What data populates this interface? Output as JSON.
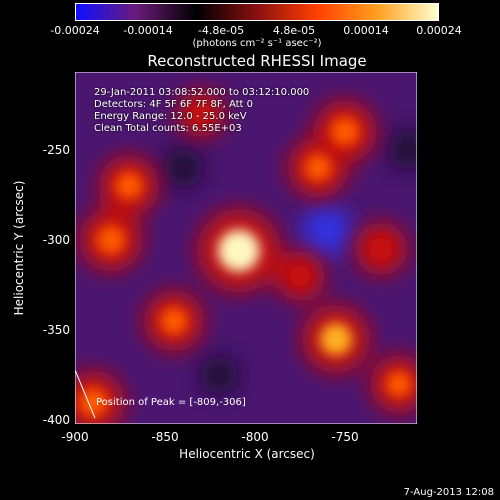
{
  "colorbar": {
    "ticks": [
      "-0.00024",
      "-0.00014",
      "-4.8e-05",
      "4.8e-05",
      "0.00014",
      "0.00024"
    ],
    "unit": "(photons cm⁻² s⁻¹ asec⁻²)",
    "colors": [
      "#1010ff",
      "#6a1a7a",
      "#000000",
      "#8a1010",
      "#ff4000",
      "#ffa020",
      "#ffffd0"
    ]
  },
  "chart_data": {
    "type": "heatmap",
    "title": "Reconstructed RHESSI Image",
    "xlabel": "Heliocentric X (arcsec)",
    "ylabel": "Heliocentric Y (arcsec)",
    "xlim": [
      -900,
      -710
    ],
    "ylim": [
      -402,
      -207
    ],
    "xticks": [
      -900,
      -850,
      -800,
      -750
    ],
    "yticks": [
      -400,
      -350,
      -300,
      -250
    ],
    "annotations": [
      "29-Jan-2011 03:08:52.000 to 03:12:10.000",
      "Detectors: 4F 5F 6F 7F 8F, Att 0",
      "Energy Range: 12.0 - 25.0 keV",
      "Clean    Total counts: 6.55E+03"
    ],
    "peak_label": "Position of Peak = [-809,-306]",
    "peak": [
      -809,
      -306
    ],
    "sources": [
      {
        "x": -809,
        "y": -306,
        "intensity": 1.0
      },
      {
        "x": -870,
        "y": -270,
        "intensity": 0.55
      },
      {
        "x": -880,
        "y": -300,
        "intensity": 0.6
      },
      {
        "x": -845,
        "y": -345,
        "intensity": 0.55
      },
      {
        "x": -890,
        "y": -390,
        "intensity": 0.6
      },
      {
        "x": -765,
        "y": -260,
        "intensity": 0.55
      },
      {
        "x": -750,
        "y": -240,
        "intensity": 0.6
      },
      {
        "x": -755,
        "y": -355,
        "intensity": 0.7
      },
      {
        "x": -775,
        "y": -320,
        "intensity": 0.35
      },
      {
        "x": -730,
        "y": -305,
        "intensity": 0.4
      },
      {
        "x": -720,
        "y": -380,
        "intensity": 0.5
      },
      {
        "x": -830,
        "y": -230,
        "intensity": 0.3
      }
    ],
    "negatives": [
      {
        "x": -760,
        "y": -295,
        "intensity": 0.8
      },
      {
        "x": -840,
        "y": -260,
        "intensity": 0.4
      },
      {
        "x": -715,
        "y": -250,
        "intensity": 0.4
      },
      {
        "x": -820,
        "y": -375,
        "intensity": 0.35
      }
    ]
  },
  "footer": "7-Aug-2013 12:08"
}
